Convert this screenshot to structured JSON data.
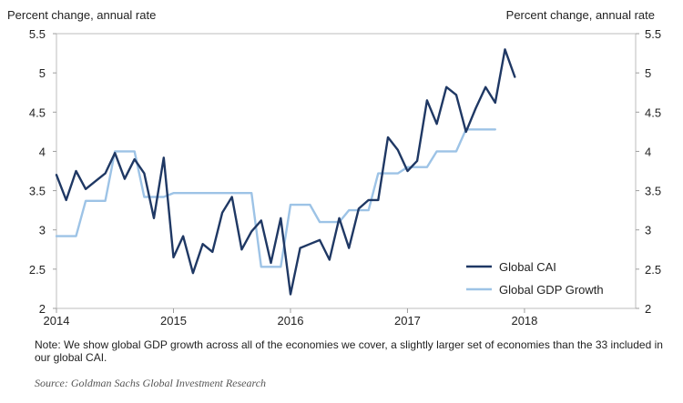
{
  "chart_data": {
    "type": "line",
    "ylabel_left": "Percent change, annual rate",
    "ylabel_right": "Percent change, annual rate",
    "ylim": [
      2,
      5.5
    ],
    "xlim": [
      2014,
      2018.95
    ],
    "yticks": [
      "2",
      "2.5",
      "3",
      "3.5",
      "4",
      "4.5",
      "5",
      "5.5"
    ],
    "xticks": [
      "2014",
      "2015",
      "2016",
      "2017",
      "2018"
    ],
    "grid": false,
    "legend_position": "bottom-right",
    "series": [
      {
        "name": "Global CAI",
        "color": "#1f3864",
        "x": [
          2014.0,
          2014.083,
          2014.167,
          2014.25,
          2014.333,
          2014.417,
          2014.5,
          2014.583,
          2014.667,
          2014.75,
          2014.833,
          2014.917,
          2015.0,
          2015.083,
          2015.167,
          2015.25,
          2015.333,
          2015.417,
          2015.5,
          2015.583,
          2015.667,
          2015.75,
          2015.833,
          2015.917,
          2016.0,
          2016.083,
          2016.167,
          2016.25,
          2016.333,
          2016.417,
          2016.5,
          2016.583,
          2016.667,
          2016.75,
          2016.833,
          2016.917,
          2017.0,
          2017.083,
          2017.167,
          2017.25,
          2017.333,
          2017.417,
          2017.5,
          2017.583,
          2017.667,
          2017.75,
          2017.833,
          2017.917
        ],
        "values": [
          3.7,
          3.38,
          3.75,
          3.52,
          3.62,
          3.72,
          3.98,
          3.65,
          3.9,
          3.72,
          3.15,
          3.92,
          2.65,
          2.92,
          2.45,
          2.82,
          2.72,
          3.22,
          3.42,
          2.75,
          2.98,
          3.12,
          2.58,
          3.15,
          2.18,
          2.77,
          2.82,
          2.87,
          2.62,
          3.15,
          2.77,
          3.27,
          3.38,
          3.38,
          4.18,
          4.02,
          3.75,
          3.88,
          4.65,
          4.35,
          4.82,
          4.72,
          4.25,
          4.55,
          4.82,
          4.62,
          5.3,
          4.95
        ]
      },
      {
        "name": "Global GDP Growth",
        "color": "#9dc3e6",
        "x": [
          2014.0,
          2014.167,
          2014.25,
          2014.417,
          2014.5,
          2014.667,
          2014.75,
          2014.917,
          2015.0,
          2015.667,
          2015.75,
          2015.917,
          2016.0,
          2016.167,
          2016.25,
          2016.417,
          2016.5,
          2016.667,
          2016.75,
          2016.917,
          2017.0,
          2017.167,
          2017.25,
          2017.417,
          2017.5,
          2017.667,
          2017.75
        ],
        "values": [
          2.92,
          2.92,
          3.37,
          3.37,
          4.0,
          4.0,
          3.42,
          3.42,
          3.47,
          3.47,
          2.53,
          2.53,
          3.32,
          3.32,
          3.1,
          3.1,
          3.25,
          3.25,
          3.72,
          3.72,
          3.8,
          3.8,
          4.0,
          4.0,
          4.28,
          4.28,
          4.28
        ]
      }
    ]
  },
  "note": "Note: We show global GDP growth across all of the economies we cover, a slightly larger set of economies than the 33 included in our global CAI.",
  "source": "Source: Goldman Sachs Global Investment Research"
}
